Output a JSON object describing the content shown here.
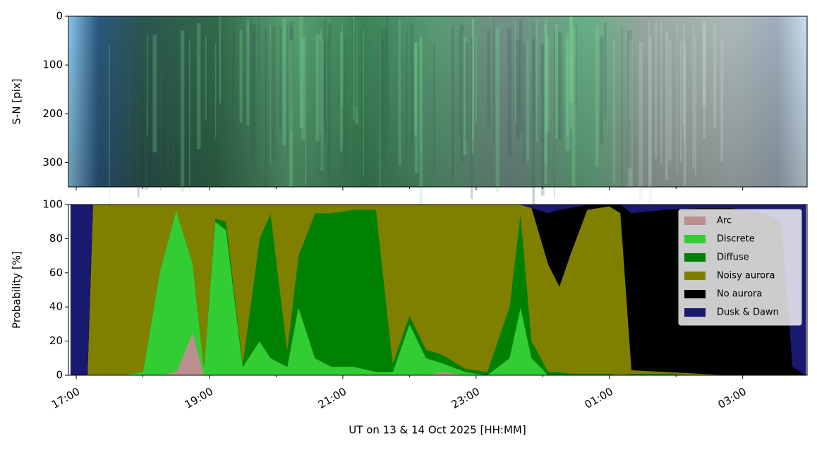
{
  "chart_data": [
    {
      "type": "image",
      "ylabel": "S-N [pix]",
      "ylim": [
        350,
        0
      ],
      "yticks": [
        0,
        100,
        200,
        300
      ]
    },
    {
      "type": "stacked_area",
      "xlabel": "UT on 13 & 14 Oct 2025 [HH:MM]",
      "ylabel": "Probability [%]",
      "xlim": [
        "16:53",
        "03:58"
      ],
      "xticks": [
        "17:00",
        "19:00",
        "21:00",
        "23:00",
        "01:00",
        "03:00"
      ],
      "xminorticks": [
        "18:00",
        "20:00",
        "22:00",
        "00:00",
        "02:00"
      ],
      "ylim": [
        0,
        100
      ],
      "yticks": [
        0,
        20,
        40,
        60,
        80,
        100
      ],
      "legend": "upper right",
      "x": [
        "16:55",
        "17:10",
        "17:15",
        "17:40",
        "18:00",
        "18:15",
        "18:30",
        "18:45",
        "18:55",
        "19:05",
        "19:15",
        "19:30",
        "19:45",
        "19:55",
        "20:10",
        "20:20",
        "20:35",
        "20:50",
        "21:10",
        "21:30",
        "21:45",
        "22:00",
        "22:15",
        "22:30",
        "22:50",
        "23:10",
        "23:30",
        "23:40",
        "23:50",
        "00:05",
        "00:15",
        "00:25",
        "00:40",
        "01:00",
        "01:10",
        "01:20",
        "01:50",
        "02:20",
        "02:50",
        "03:20",
        "03:35",
        "03:45",
        "03:57"
      ],
      "series": [
        {
          "name": "Arc",
          "color": "#bc8f8f",
          "values": [
            0,
            0,
            0,
            0,
            0,
            0,
            2,
            25,
            0,
            0,
            0,
            0,
            0,
            0,
            0,
            0,
            0,
            0,
            0,
            0,
            0,
            0,
            0,
            2,
            0,
            0,
            0,
            0,
            0,
            0,
            0,
            0,
            0,
            0,
            0,
            0,
            0,
            0,
            0,
            0,
            0,
            0,
            0
          ]
        },
        {
          "name": "Discrete",
          "color": "#32cd32",
          "values": [
            0,
            0,
            0,
            0,
            2,
            60,
            95,
            40,
            5,
            90,
            85,
            5,
            20,
            10,
            5,
            40,
            10,
            5,
            5,
            2,
            2,
            30,
            10,
            5,
            2,
            0,
            10,
            40,
            10,
            0,
            0,
            0,
            0,
            0,
            0,
            0,
            0,
            0,
            0,
            0,
            0,
            0,
            0
          ]
        },
        {
          "name": "Diffuse",
          "color": "#008000",
          "values": [
            0,
            0,
            0,
            0,
            0,
            0,
            0,
            0,
            0,
            2,
            5,
            2,
            60,
            85,
            10,
            30,
            85,
            90,
            92,
            95,
            5,
            5,
            5,
            5,
            2,
            2,
            30,
            55,
            10,
            2,
            2,
            1,
            1,
            1,
            0,
            1,
            1,
            0,
            0,
            0,
            0,
            0,
            0
          ]
        },
        {
          "name": "Noisy aurora",
          "color": "#808000",
          "values": [
            0,
            0,
            100,
            100,
            98,
            40,
            3,
            35,
            95,
            8,
            10,
            93,
            20,
            5,
            85,
            30,
            5,
            5,
            3,
            3,
            93,
            65,
            85,
            88,
            96,
            98,
            60,
            5,
            78,
            63,
            50,
            70,
            96,
            98,
            95,
            2,
            1,
            1,
            0,
            0,
            0,
            0,
            0
          ]
        },
        {
          "name": "No aurora",
          "color": "#000000",
          "values": [
            0,
            0,
            0,
            0,
            0,
            0,
            0,
            0,
            0,
            0,
            0,
            0,
            0,
            0,
            0,
            0,
            0,
            0,
            0,
            0,
            0,
            0,
            0,
            0,
            0,
            0,
            0,
            0,
            0,
            30,
            45,
            27,
            3,
            1,
            5,
            92,
            95,
            97,
            98,
            95,
            90,
            5,
            0
          ]
        },
        {
          "name": "Dusk & Dawn",
          "color": "#191970",
          "values": [
            100,
            100,
            0,
            0,
            0,
            0,
            0,
            0,
            0,
            0,
            0,
            0,
            0,
            0,
            0,
            0,
            0,
            0,
            0,
            0,
            0,
            0,
            0,
            0,
            0,
            0,
            0,
            0,
            2,
            5,
            3,
            2,
            0,
            0,
            0,
            5,
            3,
            2,
            2,
            5,
            10,
            95,
            100
          ]
        }
      ]
    }
  ]
}
